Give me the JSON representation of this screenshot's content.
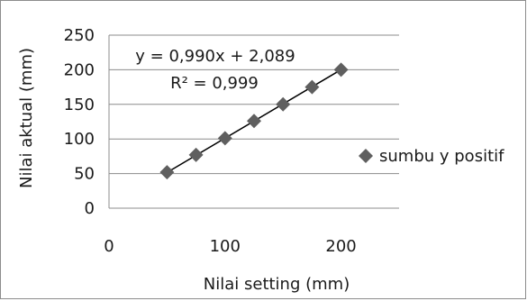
{
  "chart_data": {
    "type": "scatter",
    "xlabel": "Nilai setting (mm)",
    "ylabel": "Nilai aktual (mm)",
    "xlim": [
      0,
      250
    ],
    "ylim": [
      0,
      250
    ],
    "xticks": [
      0,
      100,
      200
    ],
    "yticks": [
      0,
      50,
      100,
      150,
      200,
      250
    ],
    "grid": "horizontal",
    "legend_position": "right",
    "series": [
      {
        "name": "sumbu y positif",
        "marker": "diamond",
        "color": "#5f5f5f",
        "x": [
          50,
          75,
          100,
          125,
          150,
          175,
          200
        ],
        "y": [
          52,
          77,
          101,
          126,
          150,
          175,
          200
        ]
      }
    ],
    "trendline": {
      "slope": 0.99,
      "intercept": 2.089,
      "x_range": [
        50,
        200
      ],
      "color": "#000000"
    },
    "annotations": {
      "equation": "y = 0,990x + 2,089",
      "r_squared": "R² = 0,999"
    }
  }
}
